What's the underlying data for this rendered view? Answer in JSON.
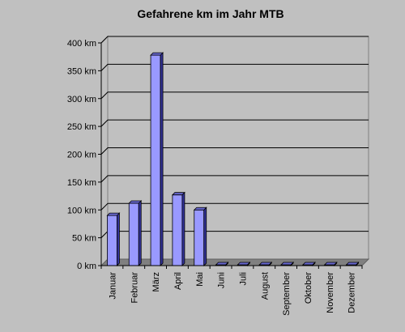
{
  "chart_data": {
    "type": "bar",
    "title": "Gefahrene km im Jahr MTB",
    "xlabel": "",
    "ylabel": "",
    "unit": "km",
    "categories": [
      "Januar",
      "Februar",
      "März",
      "April",
      "Mai",
      "Juni",
      "Juli",
      "August",
      "September",
      "Oktober",
      "November",
      "Dezember"
    ],
    "values": [
      90,
      112,
      378,
      127,
      100,
      0,
      0,
      0,
      0,
      0,
      0,
      0
    ],
    "ylim": [
      0,
      400
    ],
    "yticks": [
      0,
      50,
      100,
      150,
      200,
      250,
      300,
      350,
      400
    ],
    "ytick_labels": [
      "0 km",
      "50 km",
      "100 km",
      "150 km",
      "200 km",
      "250 km",
      "300 km",
      "350 km",
      "400 km"
    ],
    "grid": true,
    "legend": "none",
    "colors": {
      "background": "#c0c0c0",
      "plot_wall": "#c0c0c0",
      "floor": "#808080",
      "grid": "#000000",
      "bar_front": "#9999ff",
      "bar_side": "#333399",
      "bar_top": "#6666cc"
    }
  }
}
